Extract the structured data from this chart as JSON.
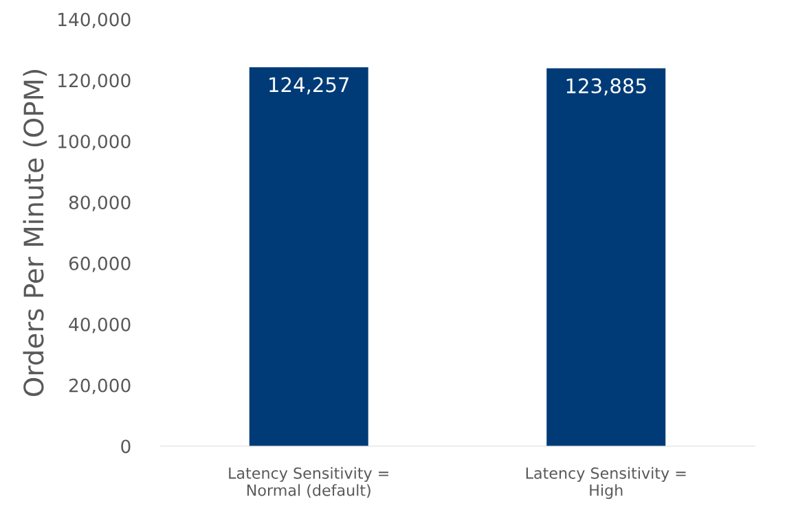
{
  "chart_data": {
    "type": "bar",
    "ylabel": "Orders Per Minute (OPM)",
    "categories": [
      "Latency Sensitivity =\nNormal (default)",
      "Latency Sensitivity =\nHigh"
    ],
    "values": [
      124257,
      123885
    ],
    "color": "#003b77",
    "ylim": [
      0,
      140000
    ],
    "yticks": [
      {
        "value": 0,
        "label": "0"
      },
      {
        "value": 20000,
        "label": "20,000"
      },
      {
        "value": 40000,
        "label": "40,000"
      },
      {
        "value": 60000,
        "label": "60,000"
      },
      {
        "value": 80000,
        "label": "80,000"
      },
      {
        "value": 100000,
        "label": "100,000"
      },
      {
        "value": 120000,
        "label": "120,000"
      },
      {
        "value": 140000,
        "label": "140,000"
      }
    ],
    "value_labels": [
      "124,257",
      "123,885"
    ],
    "grid": false,
    "legend": false
  }
}
